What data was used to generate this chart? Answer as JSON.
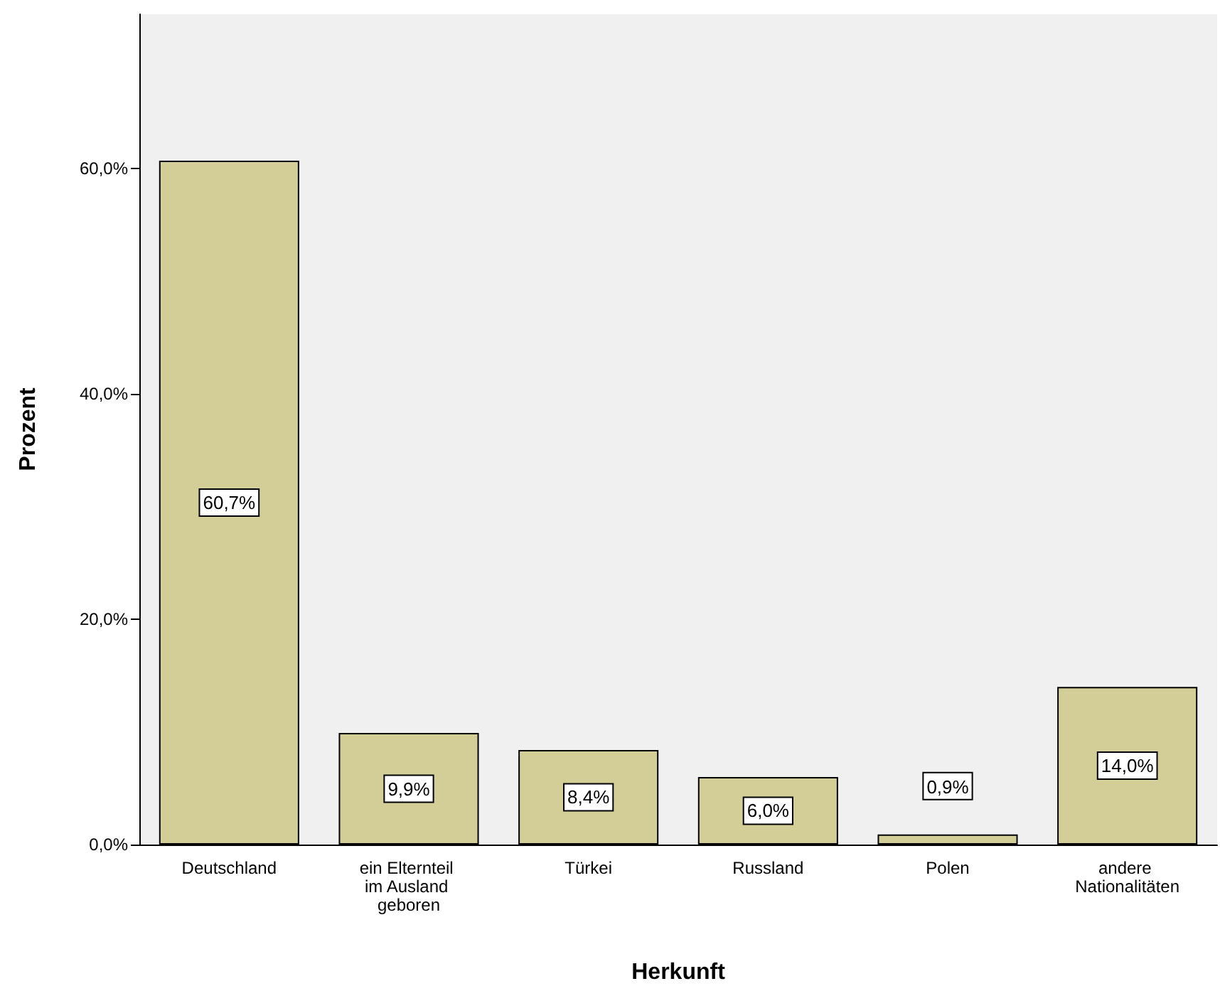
{
  "chart_data": {
    "type": "bar",
    "xlabel": "Herkunft",
    "ylabel": "Prozent",
    "categories": [
      "Deutschland",
      "ein Elternteil im Ausland geboren",
      "Türkei",
      "Russland",
      "Polen",
      "andere Nationalitäten"
    ],
    "values": [
      60.7,
      9.9,
      8.4,
      6.0,
      0.9,
      14.0
    ],
    "value_labels": [
      "60,7%",
      "9,9%",
      "8,4%",
      "6,0%",
      "0,9%",
      "14,0%"
    ],
    "color": "#d3ce97",
    "ylim": [
      0,
      73.7
    ],
    "yticks": [
      {
        "value": 0,
        "label": "0,0%"
      },
      {
        "value": 20,
        "label": "20,0%"
      },
      {
        "value": 40,
        "label": "40,0%"
      },
      {
        "value": 60,
        "label": "60,0%"
      }
    ],
    "grid": false
  }
}
